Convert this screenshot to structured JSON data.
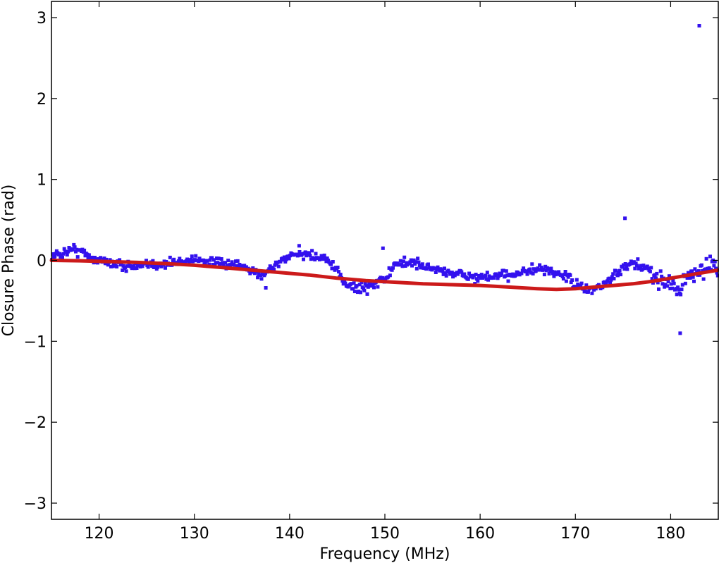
{
  "chart_data": {
    "type": "scatter",
    "title": "",
    "xlabel": "Frequency (MHz)",
    "ylabel": "Closure Phase (rad)",
    "xlim": [
      115,
      185
    ],
    "ylim": [
      -3.2,
      3.2
    ],
    "xticks": [
      120,
      130,
      140,
      150,
      160,
      170,
      180
    ],
    "yticks": [
      -3,
      -2,
      -1,
      0,
      1,
      2,
      3
    ],
    "xtick_labels": [
      "120",
      "130",
      "140",
      "150",
      "160",
      "170",
      "180"
    ],
    "ytick_labels": [
      "−3",
      "−2",
      "−1",
      "0",
      "1",
      "2",
      "3"
    ],
    "grid": false,
    "legend": "none",
    "colors": {
      "points": "#3311ee",
      "model": "#cc1a1a",
      "axes": "#000000"
    },
    "series": [
      {
        "kind": "line",
        "x": [
          115,
          118,
          121,
          124,
          127,
          130,
          133,
          136,
          139,
          142,
          145,
          148,
          151,
          154,
          157,
          160,
          163,
          166,
          168,
          170,
          172,
          174,
          176,
          178,
          180,
          182,
          185
        ],
        "y": [
          0.0,
          -0.005,
          -0.015,
          -0.025,
          -0.04,
          -0.06,
          -0.09,
          -0.12,
          -0.15,
          -0.18,
          -0.22,
          -0.25,
          -0.27,
          -0.29,
          -0.3,
          -0.31,
          -0.33,
          -0.35,
          -0.36,
          -0.35,
          -0.33,
          -0.31,
          -0.29,
          -0.26,
          -0.22,
          -0.18,
          -0.12
        ]
      },
      {
        "kind": "scatter",
        "trend": {
          "x": [
            115,
            116,
            117,
            118,
            119,
            120,
            122,
            124,
            126,
            128,
            130,
            132,
            134,
            136,
            137,
            138,
            139,
            140,
            141,
            142,
            143,
            144,
            145,
            146,
            147,
            148,
            149,
            150,
            151,
            152,
            153,
            154,
            156,
            158,
            160,
            162,
            164,
            166,
            168,
            169,
            170,
            171,
            172,
            173,
            174,
            175,
            176,
            177,
            178,
            179,
            180,
            181,
            182,
            183,
            184,
            185
          ],
          "y": [
            0.05,
            0.08,
            0.14,
            0.12,
            0.05,
            0.0,
            -0.05,
            -0.08,
            -0.05,
            -0.03,
            0.02,
            -0.03,
            -0.06,
            -0.12,
            -0.18,
            -0.1,
            -0.02,
            0.05,
            0.08,
            0.07,
            0.04,
            0.0,
            -0.15,
            -0.3,
            -0.35,
            -0.33,
            -0.28,
            -0.22,
            -0.08,
            -0.02,
            -0.03,
            -0.07,
            -0.13,
            -0.18,
            -0.22,
            -0.2,
            -0.15,
            -0.12,
            -0.15,
            -0.2,
            -0.3,
            -0.37,
            -0.35,
            -0.3,
            -0.2,
            -0.1,
            -0.05,
            -0.08,
            -0.15,
            -0.22,
            -0.3,
            -0.32,
            -0.2,
            -0.1,
            -0.08,
            -0.05
          ]
        },
        "spread": 0.05,
        "count": 700,
        "outliers": [
          {
            "x": 183.0,
            "y": 2.9
          },
          {
            "x": 175.2,
            "y": 0.52
          },
          {
            "x": 149.8,
            "y": 0.15
          },
          {
            "x": 181.0,
            "y": -0.9
          },
          {
            "x": 137.5,
            "y": -0.34
          },
          {
            "x": 141.0,
            "y": 0.18
          }
        ]
      }
    ]
  }
}
